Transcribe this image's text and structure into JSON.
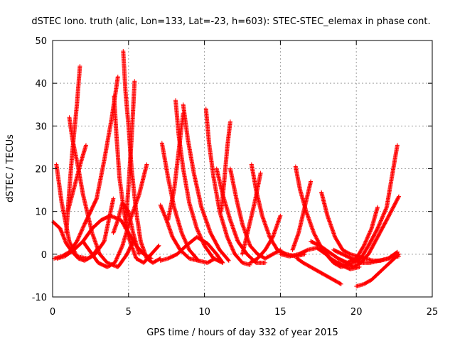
{
  "chart_data": {
    "type": "scatter",
    "title": "dSTEC Iono. truth (alic, Lon=133, Lat=-23, h=603): STEC-STEC_elemax in phase cont.",
    "xlabel": "GPS time / hours of day 332 of year 2015",
    "ylabel": "dSTEC  / TECUs",
    "xlim": [
      0,
      25
    ],
    "ylim": [
      -10,
      50
    ],
    "xticks": [
      "0",
      "5",
      "10",
      "15",
      "20",
      "25"
    ],
    "yticks": [
      "-10",
      "0",
      "10",
      "20",
      "30",
      "40",
      "50"
    ],
    "grid": true,
    "marker": "plus",
    "color": "#ff0000",
    "series": [
      {
        "x": [
          0.1,
          0.6,
          1.1,
          1.6,
          2.1,
          2.5,
          2.9,
          3.4,
          3.9,
          4.3
        ],
        "y": [
          -1,
          -0.5,
          0.5,
          3,
          7,
          10,
          13,
          22,
          32,
          41.5
        ]
      },
      {
        "x": [
          0.25,
          0.6,
          1.1,
          1.6,
          2.3,
          2.8,
          3.4,
          3.7,
          4.0
        ],
        "y": [
          21,
          12,
          3,
          -0.5,
          -1,
          0,
          3,
          8,
          13
        ]
      },
      {
        "x": [
          1.1,
          1.3,
          1.7,
          2.0,
          2.6,
          3.1,
          3.6,
          4.3,
          4.9,
          5.3
        ],
        "y": [
          32,
          27,
          20,
          14,
          5,
          0,
          -2,
          -3,
          0,
          3
        ]
      },
      {
        "x": [
          0.9,
          1.1,
          1.3,
          1.6,
          1.8
        ],
        "y": [
          5,
          15,
          24,
          35,
          44
        ]
      },
      {
        "x": [
          1.0,
          1.3,
          1.6,
          1.9,
          2.2
        ],
        "y": [
          10,
          14,
          18,
          22,
          25.5
        ]
      },
      {
        "x": [
          0.05,
          0.5,
          0.9,
          1.3,
          1.7,
          2.1,
          2.6,
          3.0
        ],
        "y": [
          7.5,
          6,
          2.5,
          0.5,
          -1,
          -1.5,
          -0.5,
          1.5
        ]
      },
      {
        "x": [
          0.3,
          0.8,
          1.4,
          2.0,
          2.6,
          3.2,
          3.8,
          4.5,
          5.0,
          5.5,
          6.0,
          6.5
        ],
        "y": [
          -1,
          -0.5,
          1,
          3,
          6,
          8,
          9,
          8,
          5,
          2,
          0,
          -1
        ]
      },
      {
        "x": [
          2.0,
          2.5,
          3.0,
          3.6,
          4.1,
          4.6,
          5.1,
          5.7,
          6.2
        ],
        "y": [
          3,
          0.5,
          -2,
          -3,
          -2,
          2,
          8,
          14,
          21
        ]
      },
      {
        "x": [
          4.05,
          4.2,
          4.4,
          4.7,
          5.0,
          5.5,
          6.0,
          6.5,
          7.0
        ],
        "y": [
          37,
          28,
          18,
          10,
          4,
          -1,
          -2,
          0,
          2
        ]
      },
      {
        "x": [
          4.65,
          4.8,
          5.0,
          5.2,
          5.5,
          5.8,
          6.2,
          6.6,
          7.1
        ],
        "y": [
          47.5,
          38,
          30,
          20,
          10,
          3,
          -1,
          -2,
          -1
        ]
      },
      {
        "x": [
          4.8,
          5.0,
          5.2,
          5.4
        ],
        "y": [
          6,
          16,
          27,
          40.5
        ]
      },
      {
        "x": [
          4.0,
          4.3,
          4.6,
          5.0,
          5.3,
          5.7
        ],
        "y": [
          5,
          8,
          12,
          10,
          5,
          0
        ]
      },
      {
        "x": [
          7.1,
          7.6,
          8.2,
          8.8,
          9.5,
          10.2,
          10.8,
          11.2
        ],
        "y": [
          -1.5,
          -1,
          0,
          2,
          4,
          2.5,
          0,
          -2
        ]
      },
      {
        "x": [
          7.2,
          7.6,
          8.0,
          8.5,
          9.0,
          9.6,
          10.2,
          10.7
        ],
        "y": [
          26,
          18,
          11,
          5,
          1,
          -1.5,
          -2,
          -1
        ]
      },
      {
        "x": [
          7.1,
          7.5,
          7.9,
          8.4,
          9.0,
          9.6
        ],
        "y": [
          11.5,
          8,
          4,
          1,
          -1,
          -1.5
        ]
      },
      {
        "x": [
          8.1,
          8.3,
          8.6,
          9.0,
          9.5,
          10.0,
          10.6,
          11.2
        ],
        "y": [
          36,
          28,
          20,
          12,
          6,
          2,
          -1,
          -2
        ]
      },
      {
        "x": [
          8.6,
          8.9,
          9.3,
          9.8,
          10.4,
          11.0,
          11.6
        ],
        "y": [
          35,
          27,
          19,
          11,
          5,
          1,
          -1.5
        ]
      },
      {
        "x": [
          7.6,
          8.0,
          8.3,
          8.6
        ],
        "y": [
          8,
          15,
          24,
          33
        ]
      },
      {
        "x": [
          10.1,
          10.3,
          10.6,
          11.0,
          11.5,
          12.0,
          12.5,
          13.0
        ],
        "y": [
          34,
          26,
          18,
          10,
          4,
          0,
          -2,
          -2.5
        ]
      },
      {
        "x": [
          10.8,
          11.2,
          11.7,
          12.2,
          12.8,
          13.4,
          14.0
        ],
        "y": [
          20,
          14,
          8,
          3,
          0,
          -2,
          -2
        ]
      },
      {
        "x": [
          11.1,
          11.3,
          11.5,
          11.7
        ],
        "y": [
          10,
          17,
          25,
          31
        ]
      },
      {
        "x": [
          11.7,
          12.1,
          12.5,
          13.0,
          13.5,
          14.0,
          14.5,
          15.0
        ],
        "y": [
          20,
          13,
          7,
          2,
          0,
          -1,
          0,
          1
        ]
      },
      {
        "x": [
          13.1,
          13.4,
          13.8,
          14.3,
          14.8,
          15.4,
          16.0,
          16.6
        ],
        "y": [
          21,
          15,
          9,
          4,
          1,
          0,
          -0.5,
          0
        ]
      },
      {
        "x": [
          12.5,
          12.9,
          13.3,
          13.7
        ],
        "y": [
          0,
          6,
          12,
          19
        ]
      },
      {
        "x": [
          13.0,
          13.5,
          14.0,
          14.5,
          15.0
        ],
        "y": [
          -2,
          -1,
          1,
          4,
          9
        ]
      },
      {
        "x": [
          15.0,
          15.6,
          16.2,
          16.8,
          17.4,
          18.0,
          18.5,
          19.0,
          19.5
        ],
        "y": [
          0,
          -0.5,
          0,
          1,
          1.5,
          0,
          -2,
          -3,
          -2.5
        ]
      },
      {
        "x": [
          16.0,
          16.3,
          16.7,
          17.2,
          17.7,
          18.3,
          19.0,
          19.6,
          20.2
        ],
        "y": [
          20.5,
          15,
          10,
          5,
          1.5,
          -1,
          -2.5,
          -3.5,
          -3
        ]
      },
      {
        "x": [
          16.1,
          16.5,
          17.0,
          17.5,
          18.0,
          18.5,
          19.0
        ],
        "y": [
          -1,
          -2,
          -3,
          -4,
          -5,
          -6,
          -7
        ]
      },
      {
        "x": [
          15.8,
          16.2,
          16.6,
          17.0
        ],
        "y": [
          1,
          5,
          11,
          17
        ]
      },
      {
        "x": [
          17.7,
          18.1,
          18.6,
          19.1,
          19.6,
          20.1,
          20.6,
          21.1,
          21.6,
          22.1,
          22.7
        ],
        "y": [
          14.5,
          9,
          4,
          1,
          0,
          -0.5,
          -1,
          -1.5,
          -1.5,
          -1,
          0.5
        ]
      },
      {
        "x": [
          17.0,
          17.6,
          18.2,
          18.8,
          19.4,
          20.0,
          20.5,
          21.0,
          21.4
        ],
        "y": [
          3,
          2,
          0.5,
          -1,
          -2,
          -1,
          2,
          6,
          11
        ]
      },
      {
        "x": [
          18.8,
          19.3,
          19.8,
          20.3,
          20.8,
          21.4,
          22.0,
          22.7
        ],
        "y": [
          -2,
          -2.5,
          -2,
          -1,
          2,
          6,
          11,
          25.5
        ]
      },
      {
        "x": [
          18.5,
          19.1,
          19.7,
          20.3,
          20.9,
          21.5,
          22.1,
          22.8
        ],
        "y": [
          1,
          0,
          -1,
          -2,
          -2,
          -1.5,
          -1,
          -0.5
        ]
      },
      {
        "x": [
          19.3,
          19.8,
          20.3,
          20.8,
          21.4,
          22.0,
          22.8
        ],
        "y": [
          -2,
          -3,
          -2,
          0,
          4,
          8,
          13.5
        ]
      },
      {
        "x": [
          20.0,
          20.5,
          21.0,
          21.6,
          22.2,
          22.8
        ],
        "y": [
          -7.5,
          -7,
          -6,
          -4,
          -2,
          0
        ]
      }
    ]
  }
}
